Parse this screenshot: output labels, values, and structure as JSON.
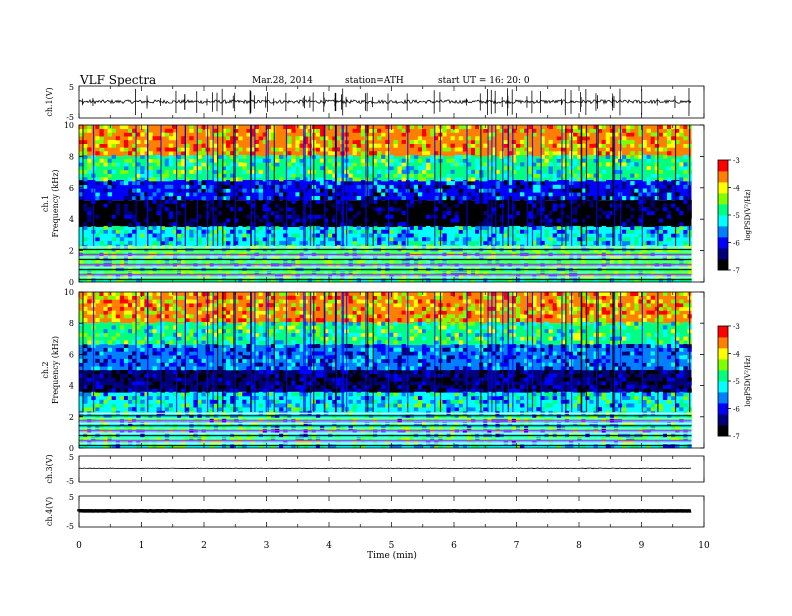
{
  "header": {
    "title": "VLF  Spectra",
    "date": "Mar.28, 2014",
    "station": "station=ATH",
    "start": "start  UT  =   16: 20: 0"
  },
  "chart_data": [
    {
      "type": "line",
      "name": "ch1-waveform",
      "ylabel": "ch.1(V)",
      "ylim": [
        -5,
        5
      ],
      "yticks": [
        "5",
        "-5"
      ],
      "xlim": [
        0,
        10
      ],
      "baseline": 0,
      "data_end_min": 9.8
    },
    {
      "type": "heatmap",
      "name": "ch1-spectrogram",
      "ylabel": "ch.1\nFrequency  (kHz)",
      "ylabel_line1": "ch.1",
      "ylabel_line2": "Frequency  (kHz)",
      "ylim": [
        0,
        10
      ],
      "yticks": [
        "0",
        "2",
        "4",
        "6",
        "8",
        "10"
      ],
      "xlim": [
        0,
        10
      ],
      "data_end_min": 9.8,
      "colorbar": {
        "label": "logPSD(V²/Hz)",
        "range": [
          -7,
          -3
        ],
        "ticks": [
          "-3",
          "-4",
          "-5",
          "-6",
          "-7"
        ]
      },
      "description_levels": [
        {
          "band_khz": [
            0,
            2.3
          ],
          "logpsd": -5.0
        },
        {
          "band_khz": [
            2.3,
            3.5
          ],
          "logpsd": -5.3
        },
        {
          "band_khz": [
            3.5,
            5.2
          ],
          "logpsd": -6.7
        },
        {
          "band_khz": [
            5.2,
            6.5
          ],
          "logpsd": -6.0
        },
        {
          "band_khz": [
            6.5,
            8.0
          ],
          "logpsd": -4.8
        },
        {
          "band_khz": [
            8.0,
            10.0
          ],
          "logpsd": -3.8
        }
      ]
    },
    {
      "type": "heatmap",
      "name": "ch2-spectrogram",
      "ylabel_line1": "ch.2",
      "ylabel_line2": "Frequency  (kHz)",
      "ylim": [
        0,
        10
      ],
      "yticks": [
        "0",
        "2",
        "4",
        "6",
        "8",
        "10"
      ],
      "xlim": [
        0,
        10
      ],
      "data_end_min": 9.8,
      "colorbar": {
        "label": "logPSD(V²/Hz)",
        "range": [
          -7,
          -3
        ],
        "ticks": [
          "-3",
          "-4",
          "-5",
          "-6",
          "-7"
        ]
      },
      "description_levels": [
        {
          "band_khz": [
            0,
            2.3
          ],
          "logpsd": -5.1
        },
        {
          "band_khz": [
            2.3,
            3.6
          ],
          "logpsd": -5.2
        },
        {
          "band_khz": [
            3.6,
            5.0
          ],
          "logpsd": -6.6
        },
        {
          "band_khz": [
            5.0,
            6.6
          ],
          "logpsd": -5.8
        },
        {
          "band_khz": [
            6.6,
            8.0
          ],
          "logpsd": -4.8
        },
        {
          "band_khz": [
            8.0,
            10.0
          ],
          "logpsd": -3.8
        }
      ]
    },
    {
      "type": "line",
      "name": "ch3-waveform",
      "ylabel": "ch.3(V)",
      "ylim": [
        -5,
        5
      ],
      "yticks": [
        "5",
        "-5"
      ],
      "xlim": [
        0,
        10
      ],
      "baseline": 0,
      "data_end_min": 9.8
    },
    {
      "type": "line",
      "name": "ch4-waveform",
      "ylabel": "ch.4(V)",
      "ylim": [
        -5,
        5
      ],
      "yticks": [
        "5",
        "-5"
      ],
      "xlim": [
        0,
        10
      ],
      "baseline": 0,
      "data_end_min": 9.8
    }
  ],
  "xaxis": {
    "label": "Time  (min)",
    "ticks": [
      "0",
      "1",
      "2",
      "3",
      "4",
      "5",
      "6",
      "7",
      "8",
      "9",
      "10"
    ]
  },
  "colormap": [
    "#000000",
    "#00007a",
    "#0000ff",
    "#0080ff",
    "#00ffff",
    "#00ff80",
    "#80ff00",
    "#ffff00",
    "#ff8000",
    "#ff0000",
    "#ffffff"
  ]
}
